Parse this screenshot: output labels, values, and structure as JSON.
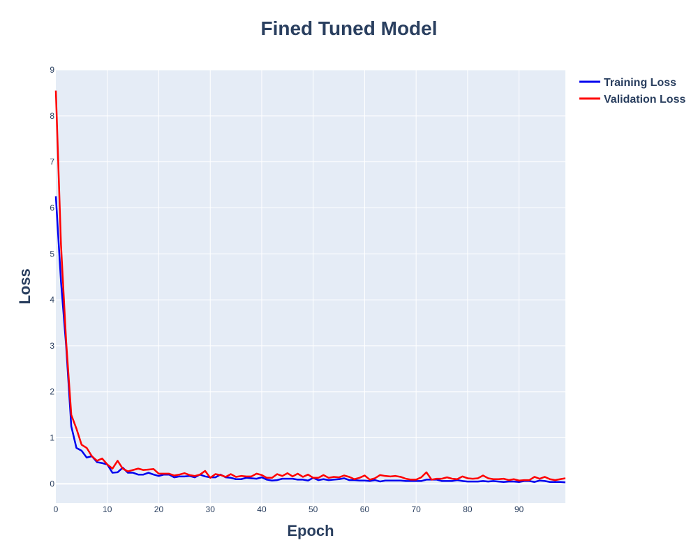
{
  "chart_data": {
    "type": "line",
    "title": "Fined Tuned Model",
    "xlabel": "Epoch",
    "ylabel": "Loss",
    "xlim": [
      0,
      99
    ],
    "ylim": [
      -0.42,
      9.0
    ],
    "x_ticks": [
      0,
      10,
      20,
      30,
      40,
      50,
      60,
      70,
      80,
      90
    ],
    "y_ticks": [
      0,
      1,
      2,
      3,
      4,
      5,
      6,
      7,
      8,
      9
    ],
    "grid": true,
    "legend_position": "top-right-outside",
    "plot_background": "#e5ecf6",
    "series": [
      {
        "name": "Training Loss",
        "color": "#0000ee",
        "values": [
          6.25,
          4.4,
          3.0,
          1.25,
          0.78,
          0.72,
          0.57,
          0.6,
          0.47,
          0.45,
          0.42,
          0.24,
          0.25,
          0.35,
          0.24,
          0.24,
          0.2,
          0.2,
          0.24,
          0.2,
          0.17,
          0.2,
          0.2,
          0.14,
          0.16,
          0.16,
          0.17,
          0.14,
          0.2,
          0.16,
          0.14,
          0.14,
          0.2,
          0.14,
          0.13,
          0.1,
          0.1,
          0.13,
          0.12,
          0.11,
          0.14,
          0.09,
          0.07,
          0.08,
          0.11,
          0.11,
          0.11,
          0.09,
          0.09,
          0.07,
          0.13,
          0.08,
          0.1,
          0.08,
          0.09,
          0.1,
          0.12,
          0.08,
          0.08,
          0.07,
          0.07,
          0.06,
          0.08,
          0.05,
          0.07,
          0.07,
          0.07,
          0.07,
          0.06,
          0.06,
          0.06,
          0.06,
          0.09,
          0.09,
          0.09,
          0.06,
          0.06,
          0.06,
          0.08,
          0.06,
          0.05,
          0.05,
          0.05,
          0.06,
          0.05,
          0.06,
          0.05,
          0.04,
          0.05,
          0.05,
          0.04,
          0.06,
          0.06,
          0.04,
          0.07,
          0.06,
          0.04,
          0.04,
          0.04,
          0.03
        ]
      },
      {
        "name": "Validation Loss",
        "color": "#ff0000",
        "values": [
          8.55,
          5.2,
          3.1,
          1.5,
          1.2,
          0.85,
          0.78,
          0.6,
          0.5,
          0.55,
          0.42,
          0.33,
          0.5,
          0.33,
          0.27,
          0.3,
          0.33,
          0.3,
          0.31,
          0.32,
          0.22,
          0.22,
          0.22,
          0.18,
          0.2,
          0.23,
          0.19,
          0.17,
          0.2,
          0.28,
          0.13,
          0.21,
          0.19,
          0.15,
          0.21,
          0.15,
          0.17,
          0.16,
          0.16,
          0.22,
          0.19,
          0.13,
          0.13,
          0.21,
          0.17,
          0.23,
          0.16,
          0.22,
          0.15,
          0.2,
          0.13,
          0.13,
          0.19,
          0.13,
          0.15,
          0.14,
          0.18,
          0.15,
          0.1,
          0.13,
          0.18,
          0.09,
          0.12,
          0.19,
          0.17,
          0.16,
          0.17,
          0.15,
          0.11,
          0.09,
          0.09,
          0.14,
          0.25,
          0.09,
          0.11,
          0.11,
          0.14,
          0.11,
          0.1,
          0.16,
          0.12,
          0.11,
          0.12,
          0.18,
          0.12,
          0.1,
          0.1,
          0.11,
          0.08,
          0.1,
          0.07,
          0.08,
          0.08,
          0.15,
          0.11,
          0.15,
          0.1,
          0.08,
          0.1,
          0.12
        ]
      }
    ]
  }
}
